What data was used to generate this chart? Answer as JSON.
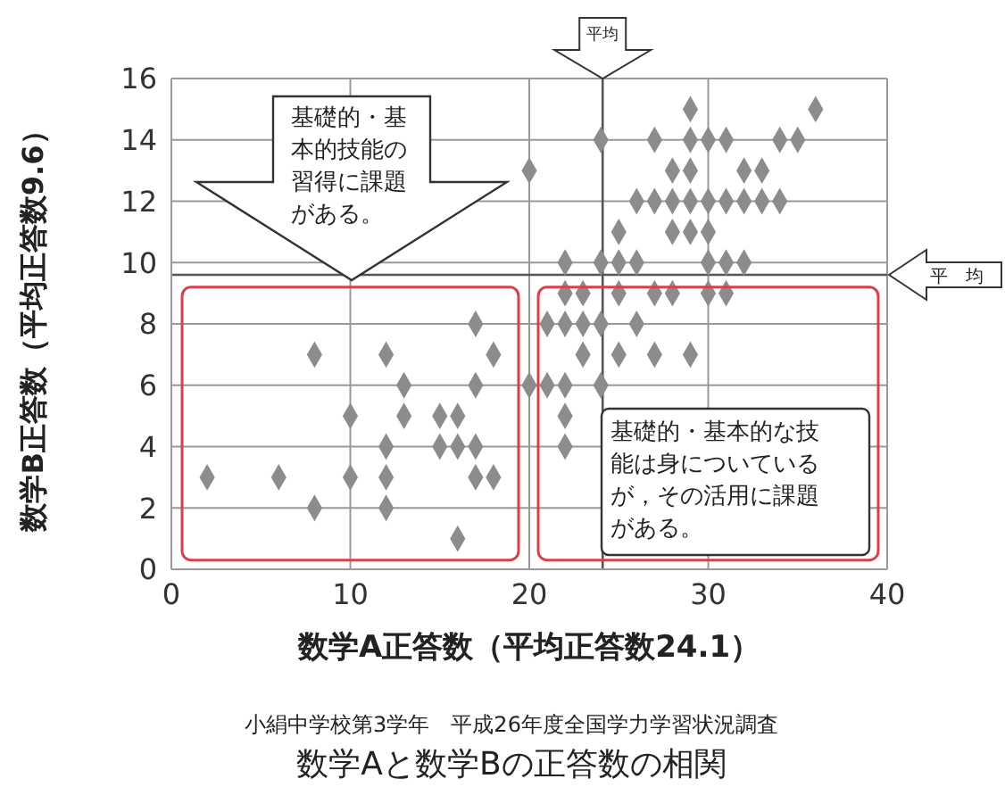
{
  "chart_data": {
    "type": "scatter",
    "title": "数学Aと数学Bの正答数の相関",
    "subtitle": "小絹中学校第3学年　平成26年度全国学力学習状況調査",
    "xlabel": "数学A正答数（平均正答数24.1）",
    "ylabel": "数学B正答数（平均正答数9.6）",
    "x": [
      17,
      8,
      12,
      18,
      13,
      17,
      10,
      13,
      15,
      16,
      12,
      15,
      16,
      17,
      2,
      6,
      10,
      12,
      17,
      18,
      8,
      12,
      16,
      29,
      36,
      24,
      27,
      29,
      30,
      31,
      34,
      35,
      20,
      28,
      29,
      32,
      33,
      26,
      27,
      28,
      29,
      30,
      31,
      32,
      33,
      34,
      25,
      28,
      29,
      30,
      22,
      24,
      25,
      26,
      30,
      31,
      32,
      22,
      23,
      25,
      27,
      28,
      30,
      31,
      21,
      22,
      23,
      24,
      26,
      23,
      25,
      27,
      29,
      20,
      21,
      22,
      24,
      22,
      22
    ],
    "series": [
      {
        "color": "#8c8c8c",
        "values": [
          8,
          7,
          7,
          7,
          6,
          6,
          5,
          5,
          5,
          5,
          4,
          4,
          4,
          4,
          3,
          3,
          3,
          3,
          3,
          3,
          2,
          2,
          1,
          15,
          15,
          14,
          14,
          14,
          14,
          14,
          14,
          14,
          13,
          13,
          13,
          13,
          13,
          12,
          12,
          12,
          12,
          12,
          12,
          12,
          12,
          12,
          11,
          11,
          11,
          11,
          10,
          10,
          10,
          10,
          10,
          10,
          10,
          9,
          9,
          9,
          9,
          9,
          9,
          9,
          8,
          8,
          8,
          8,
          8,
          7,
          7,
          7,
          7,
          6,
          6,
          6,
          6,
          5,
          4
        ]
      }
    ],
    "xlim": [
      0,
      40
    ],
    "xticks": [
      0,
      10,
      20,
      30,
      40
    ],
    "ylim": [
      0,
      16
    ],
    "yticks": [
      0,
      2,
      4,
      6,
      8,
      10,
      12,
      14,
      16
    ],
    "grid": true,
    "marker": "diamond",
    "legend": false,
    "ref_lines": [
      {
        "axis": "x",
        "value": 24.1,
        "label": "平均",
        "color": "#555555"
      },
      {
        "axis": "y",
        "value": 9.6,
        "label": "平　均",
        "color": "#555555"
      }
    ],
    "annotations": [
      "基礎的・基本的技能の習得に課題がある。",
      "基礎的・基本的な技能は身についているが，その活用に課題がある。"
    ]
  }
}
